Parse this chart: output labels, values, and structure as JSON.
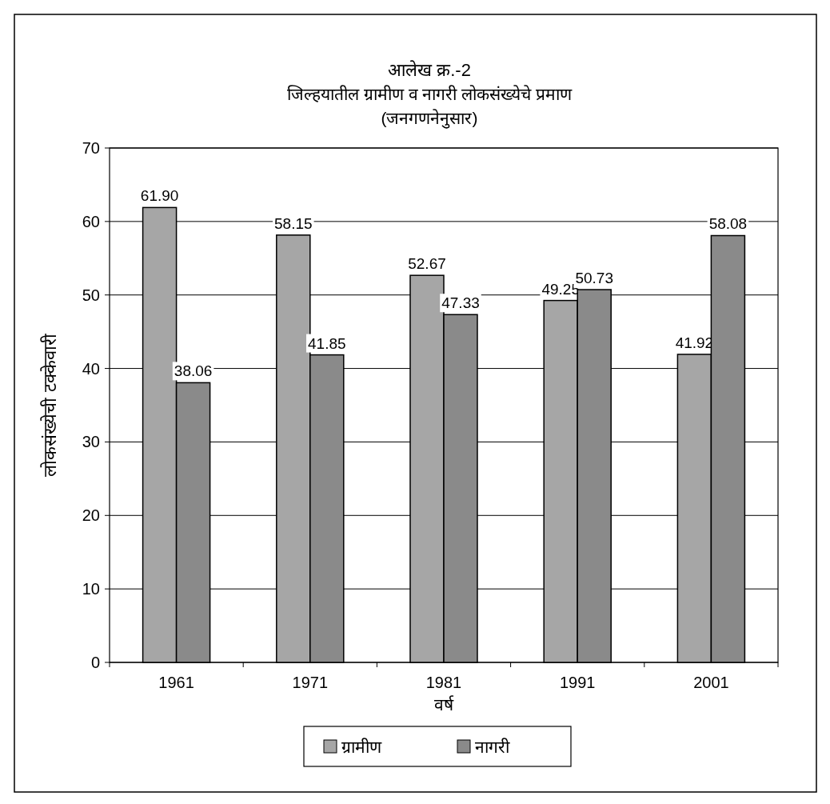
{
  "chart_data": {
    "type": "bar",
    "title": "आलेख क्र.-2",
    "subtitle": "जिल्हयातील ग्रामीण व नागरी लोकसंख्येचे प्रमाण\n(जनगणनेनुसार)",
    "xlabel": "वर्ष",
    "ylabel": "लोकसंख्येची टक्केवारी",
    "categories": [
      "1961",
      "1971",
      "1981",
      "1991",
      "2001"
    ],
    "series": [
      {
        "name": "ग्रामीण",
        "color": "#a6a6a6",
        "values": [
          61.9,
          58.15,
          52.67,
          49.25,
          41.92
        ],
        "value_labels": [
          "61.90",
          "58.15",
          "52.67",
          "49.25",
          "41.92"
        ]
      },
      {
        "name": "नागरी",
        "color": "#8a8a8a",
        "values": [
          38.06,
          41.85,
          47.33,
          50.73,
          58.08
        ],
        "value_labels": [
          "38.06",
          "41.85",
          "47.33",
          "50.73",
          "58.08"
        ]
      }
    ],
    "ylim": [
      0,
      70
    ],
    "yticks": [
      0,
      10,
      20,
      30,
      40,
      50,
      60,
      70
    ],
    "grid": "y",
    "legend": "bottom"
  }
}
